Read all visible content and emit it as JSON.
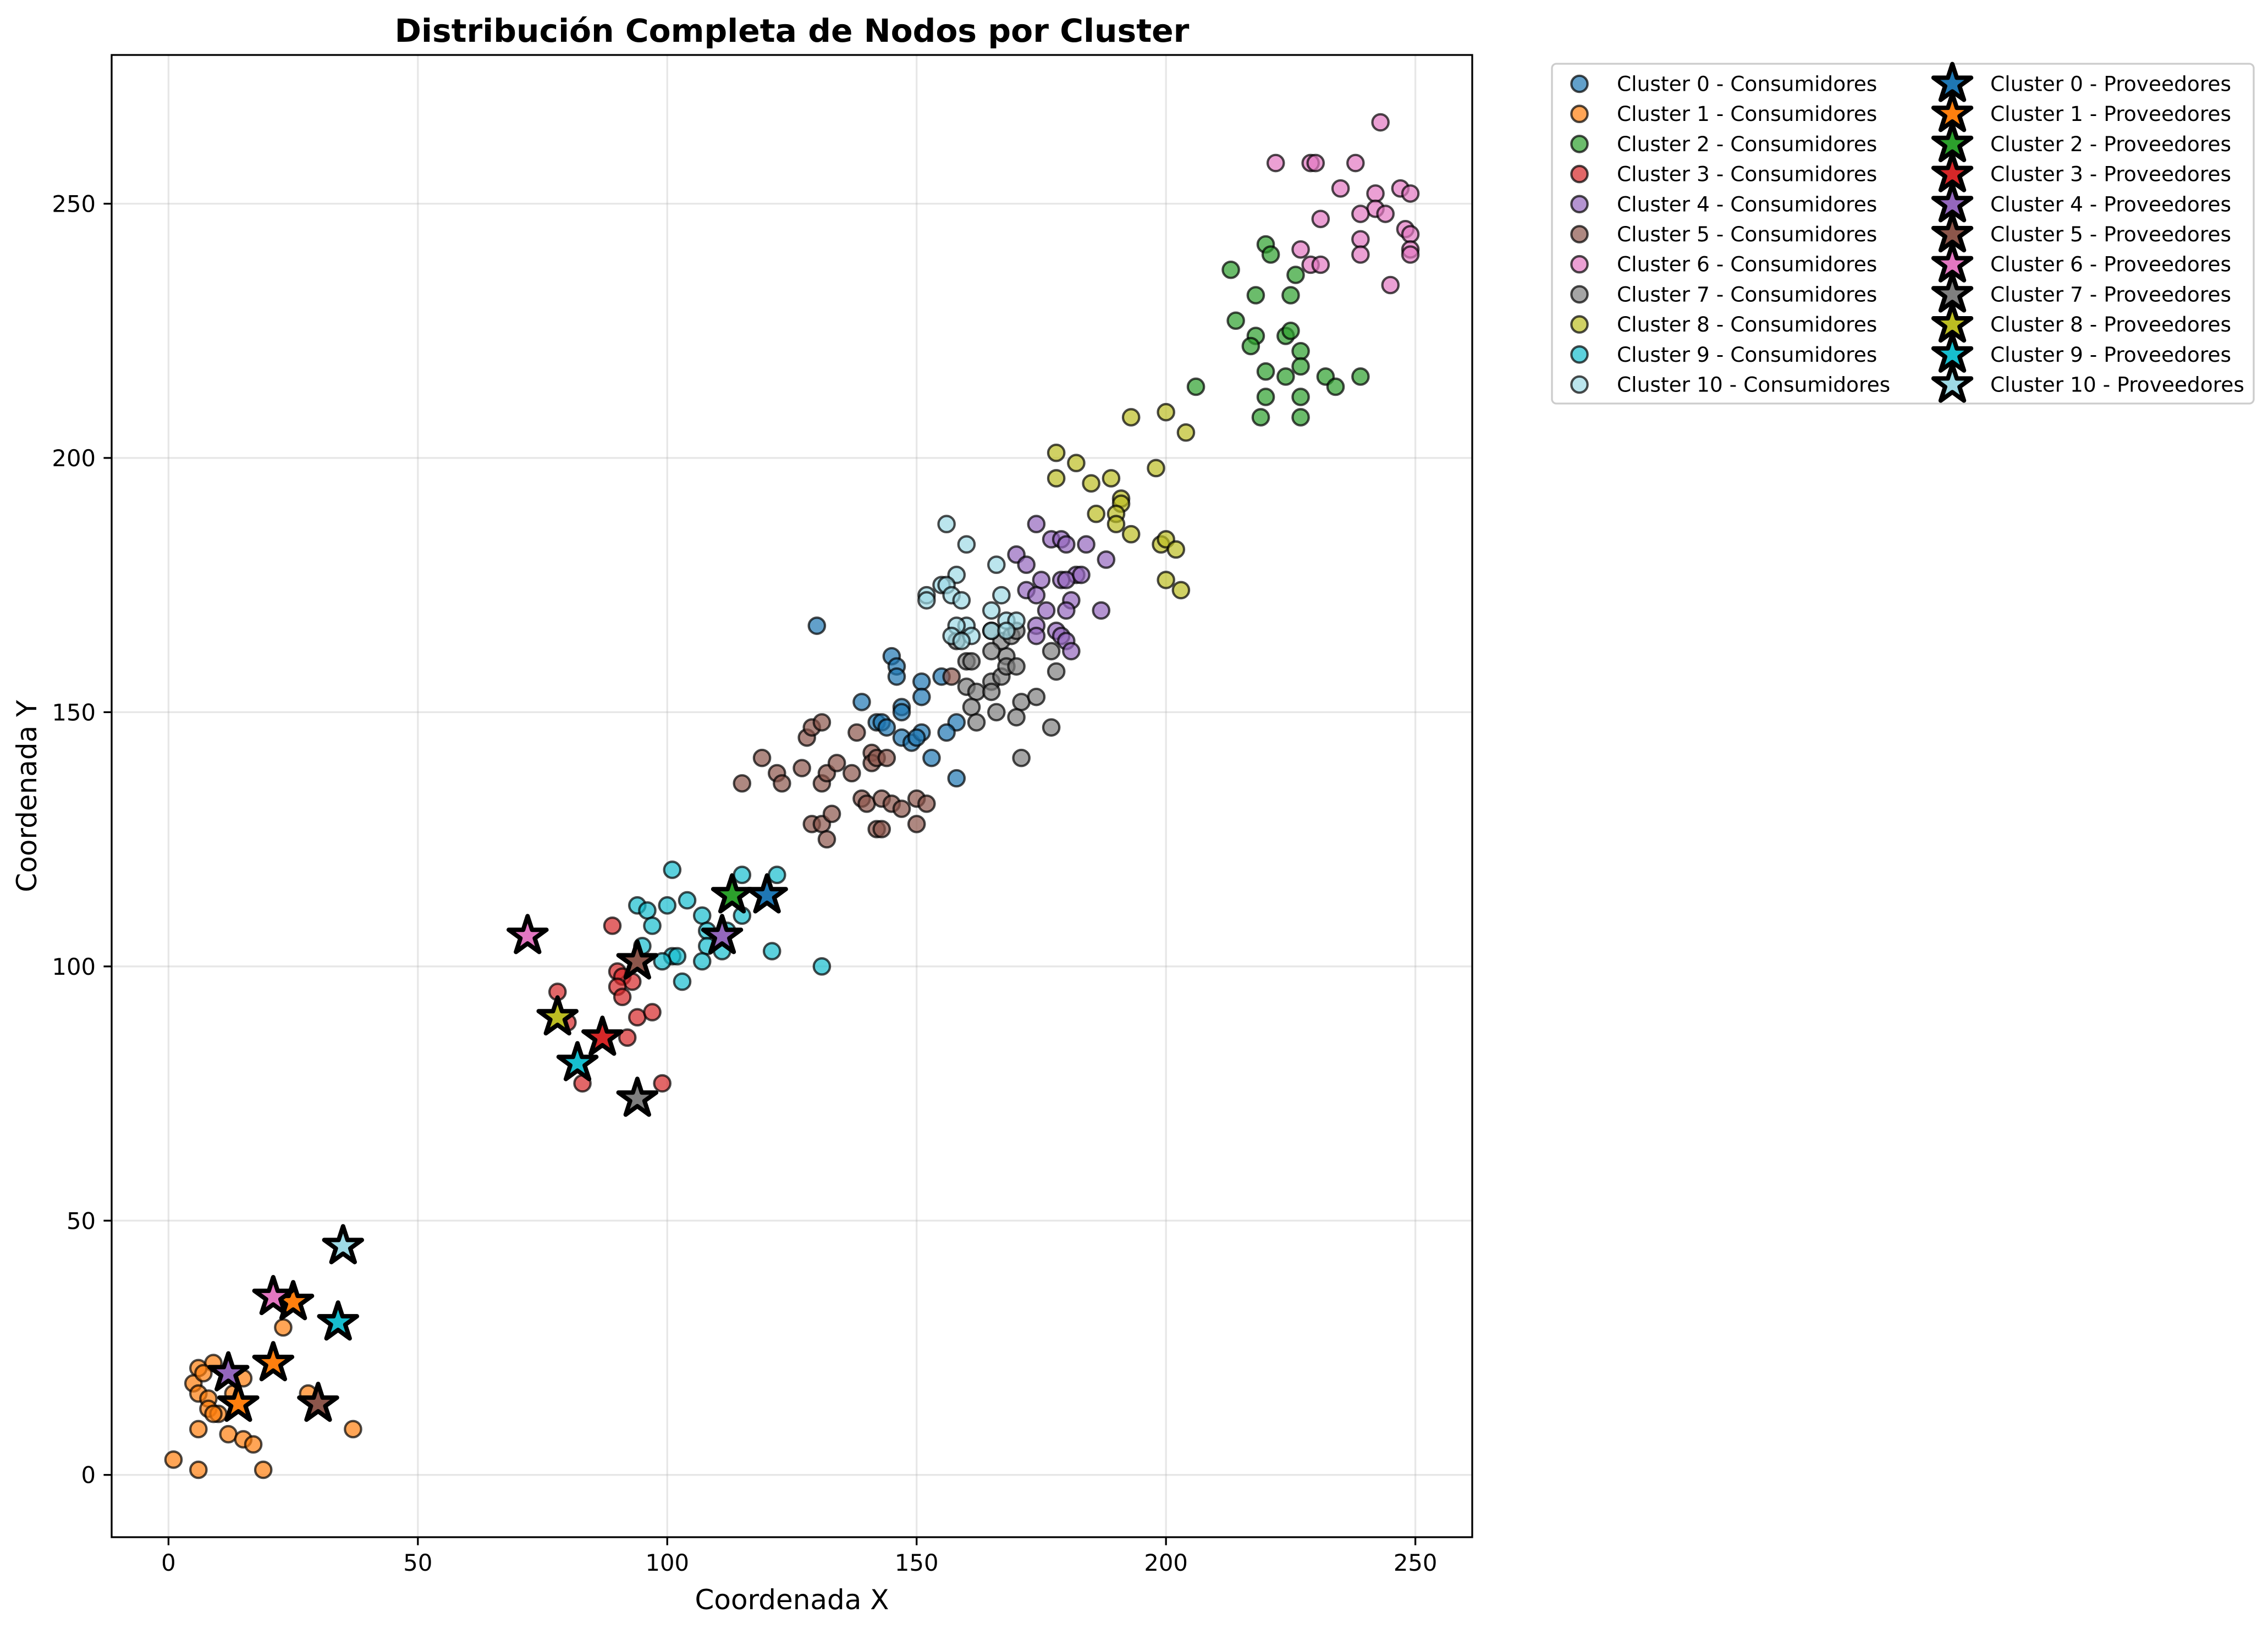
{
  "chart_data": {
    "type": "scatter",
    "title": "Distribución Completa de Nodos por Cluster",
    "xlabel": "Coordenada X",
    "ylabel": "Coordenada Y",
    "xlim": [
      -11.4,
      261.4
    ],
    "ylim": [
      -12.25,
      279.25
    ],
    "xticks": [
      0,
      50,
      100,
      150,
      200,
      250
    ],
    "yticks": [
      0,
      50,
      100,
      150,
      200,
      250
    ],
    "grid": true,
    "legend_position": "outside upper right",
    "series": [
      {
        "name": "Cluster 0 - Consumidores",
        "color": "#1f77b4",
        "marker": "circle",
        "points": [
          [
            130,
            167
          ],
          [
            139,
            152
          ],
          [
            145,
            161
          ],
          [
            146,
            159
          ],
          [
            146,
            157
          ],
          [
            142,
            148
          ],
          [
            143,
            148
          ],
          [
            144,
            147
          ],
          [
            147,
            151
          ],
          [
            147,
            150
          ],
          [
            151,
            156
          ],
          [
            151,
            153
          ],
          [
            147,
            145
          ],
          [
            149,
            144
          ],
          [
            151,
            146
          ],
          [
            153,
            141
          ],
          [
            155,
            157
          ],
          [
            158,
            148
          ],
          [
            156,
            146
          ],
          [
            158,
            137
          ],
          [
            150,
            145
          ]
        ]
      },
      {
        "name": "Cluster 1 - Consumidores",
        "color": "#ff7f0e",
        "marker": "circle",
        "points": [
          [
            1,
            3
          ],
          [
            6,
            1
          ],
          [
            19,
            1
          ],
          [
            37,
            9
          ],
          [
            28,
            16
          ],
          [
            23,
            29
          ],
          [
            6,
            21
          ],
          [
            5,
            18
          ],
          [
            9,
            22
          ],
          [
            6,
            16
          ],
          [
            7,
            20
          ],
          [
            8,
            15
          ],
          [
            8,
            13
          ],
          [
            10,
            12
          ],
          [
            9,
            12
          ],
          [
            6,
            9
          ],
          [
            12,
            8
          ],
          [
            15,
            7
          ],
          [
            17,
            6
          ],
          [
            15,
            19
          ],
          [
            13,
            16
          ]
        ]
      },
      {
        "name": "Cluster 2 - Consumidores",
        "color": "#2ca02c",
        "marker": "circle",
        "points": [
          [
            220,
            242
          ],
          [
            221,
            240
          ],
          [
            213,
            237
          ],
          [
            226,
            236
          ],
          [
            218,
            232
          ],
          [
            225,
            232
          ],
          [
            214,
            227
          ],
          [
            218,
            224
          ],
          [
            217,
            222
          ],
          [
            224,
            224
          ],
          [
            225,
            225
          ],
          [
            227,
            221
          ],
          [
            227,
            218
          ],
          [
            220,
            217
          ],
          [
            224,
            216
          ],
          [
            232,
            216
          ],
          [
            239,
            216
          ],
          [
            234,
            214
          ],
          [
            206,
            214
          ],
          [
            220,
            212
          ],
          [
            227,
            212
          ],
          [
            219,
            208
          ],
          [
            227,
            208
          ]
        ]
      },
      {
        "name": "Cluster 3 - Consumidores",
        "color": "#d62728",
        "marker": "circle",
        "points": [
          [
            89,
            108
          ],
          [
            78,
            95
          ],
          [
            90,
            99
          ],
          [
            91,
            98
          ],
          [
            93,
            97
          ],
          [
            90,
            96
          ],
          [
            91,
            94
          ],
          [
            94,
            90
          ],
          [
            97,
            91
          ],
          [
            92,
            86
          ],
          [
            99,
            77
          ],
          [
            83,
            77
          ],
          [
            80,
            89
          ]
        ]
      },
      {
        "name": "Cluster 4 - Consumidores",
        "color": "#9467bd",
        "marker": "circle",
        "points": [
          [
            174,
            187
          ],
          [
            170,
            181
          ],
          [
            177,
            184
          ],
          [
            179,
            184
          ],
          [
            180,
            183
          ],
          [
            184,
            183
          ],
          [
            172,
            179
          ],
          [
            188,
            180
          ],
          [
            175,
            176
          ],
          [
            182,
            177
          ],
          [
            179,
            176
          ],
          [
            180,
            176
          ],
          [
            172,
            174
          ],
          [
            174,
            173
          ],
          [
            181,
            172
          ],
          [
            176,
            170
          ],
          [
            180,
            170
          ],
          [
            187,
            170
          ],
          [
            174,
            167
          ],
          [
            178,
            166
          ],
          [
            179,
            165
          ],
          [
            174,
            165
          ],
          [
            180,
            164
          ],
          [
            181,
            162
          ],
          [
            183,
            177
          ]
        ]
      },
      {
        "name": "Cluster 5 - Consumidores",
        "color": "#8c564b",
        "marker": "circle",
        "points": [
          [
            119,
            141
          ],
          [
            115,
            136
          ],
          [
            122,
            138
          ],
          [
            123,
            136
          ],
          [
            128,
            145
          ],
          [
            127,
            139
          ],
          [
            129,
            147
          ],
          [
            131,
            148
          ],
          [
            131,
            136
          ],
          [
            132,
            138
          ],
          [
            134,
            140
          ],
          [
            137,
            138
          ],
          [
            138,
            146
          ],
          [
            129,
            128
          ],
          [
            131,
            128
          ],
          [
            132,
            125
          ],
          [
            133,
            130
          ],
          [
            139,
            133
          ],
          [
            140,
            132
          ],
          [
            141,
            142
          ],
          [
            141,
            140
          ],
          [
            142,
            141
          ],
          [
            144,
            141
          ],
          [
            142,
            127
          ],
          [
            143,
            127
          ],
          [
            143,
            133
          ],
          [
            145,
            132
          ],
          [
            147,
            131
          ],
          [
            150,
            133
          ],
          [
            152,
            132
          ],
          [
            150,
            128
          ],
          [
            157,
            157
          ]
        ]
      },
      {
        "name": "Cluster 6 - Consumidores",
        "color": "#e377c2",
        "marker": "circle",
        "points": [
          [
            243,
            266
          ],
          [
            222,
            258
          ],
          [
            229,
            258
          ],
          [
            230,
            258
          ],
          [
            238,
            258
          ],
          [
            235,
            253
          ],
          [
            247,
            253
          ],
          [
            249,
            252
          ],
          [
            242,
            252
          ],
          [
            242,
            249
          ],
          [
            244,
            248
          ],
          [
            239,
            248
          ],
          [
            231,
            247
          ],
          [
            248,
            245
          ],
          [
            249,
            244
          ],
          [
            239,
            243
          ],
          [
            227,
            241
          ],
          [
            249,
            241
          ],
          [
            249,
            240
          ],
          [
            239,
            240
          ],
          [
            229,
            238
          ],
          [
            231,
            238
          ],
          [
            245,
            234
          ]
        ]
      },
      {
        "name": "Cluster 7 - Consumidores",
        "color": "#7f7f7f",
        "marker": "circle",
        "points": [
          [
            158,
            164
          ],
          [
            160,
            160
          ],
          [
            161,
            160
          ],
          [
            160,
            155
          ],
          [
            162,
            154
          ],
          [
            161,
            151
          ],
          [
            162,
            148
          ],
          [
            165,
            156
          ],
          [
            165,
            154
          ],
          [
            166,
            150
          ],
          [
            167,
            157
          ],
          [
            168,
            161
          ],
          [
            168,
            159
          ],
          [
            170,
            159
          ],
          [
            167,
            164
          ],
          [
            169,
            165
          ],
          [
            170,
            166
          ],
          [
            171,
            152
          ],
          [
            170,
            149
          ],
          [
            174,
            153
          ],
          [
            171,
            141
          ],
          [
            177,
            147
          ],
          [
            178,
            158
          ],
          [
            177,
            162
          ],
          [
            165,
            166
          ],
          [
            165,
            162
          ]
        ]
      },
      {
        "name": "Cluster 8 - Consumidores",
        "color": "#bcbd22",
        "marker": "circle",
        "points": [
          [
            193,
            208
          ],
          [
            200,
            209
          ],
          [
            204,
            205
          ],
          [
            178,
            201
          ],
          [
            182,
            199
          ],
          [
            185,
            195
          ],
          [
            189,
            196
          ],
          [
            198,
            198
          ],
          [
            178,
            196
          ],
          [
            191,
            192
          ],
          [
            191,
            191
          ],
          [
            186,
            189
          ],
          [
            190,
            189
          ],
          [
            190,
            187
          ],
          [
            193,
            185
          ],
          [
            199,
            183
          ],
          [
            200,
            184
          ],
          [
            202,
            182
          ],
          [
            200,
            176
          ],
          [
            203,
            174
          ]
        ]
      },
      {
        "name": "Cluster 9 - Consumidores",
        "color": "#17becf",
        "marker": "circle",
        "points": [
          [
            101,
            119
          ],
          [
            115,
            118
          ],
          [
            122,
            118
          ],
          [
            94,
            112
          ],
          [
            100,
            112
          ],
          [
            96,
            111
          ],
          [
            104,
            113
          ],
          [
            97,
            108
          ],
          [
            107,
            110
          ],
          [
            115,
            110
          ],
          [
            108,
            107
          ],
          [
            112,
            107
          ],
          [
            95,
            104
          ],
          [
            101,
            102
          ],
          [
            102,
            102
          ],
          [
            99,
            101
          ],
          [
            108,
            104
          ],
          [
            111,
            103
          ],
          [
            107,
            101
          ],
          [
            121,
            103
          ],
          [
            131,
            100
          ],
          [
            103,
            97
          ]
        ]
      },
      {
        "name": "Cluster 10 - Consumidores",
        "color": "#9edae5",
        "marker": "circle",
        "points": [
          [
            156,
            187
          ],
          [
            160,
            183
          ],
          [
            166,
            179
          ],
          [
            158,
            177
          ],
          [
            155,
            175
          ],
          [
            156,
            175
          ],
          [
            157,
            173
          ],
          [
            152,
            173
          ],
          [
            152,
            172
          ],
          [
            159,
            172
          ],
          [
            167,
            173
          ],
          [
            165,
            170
          ],
          [
            168,
            168
          ],
          [
            170,
            168
          ],
          [
            160,
            167
          ],
          [
            158,
            167
          ],
          [
            161,
            165
          ],
          [
            157,
            165
          ],
          [
            159,
            164
          ],
          [
            165,
            166
          ],
          [
            168,
            166
          ]
        ]
      },
      {
        "name": "Cluster 0 - Proveedores",
        "color": "#1f77b4",
        "marker": "star",
        "points": [
          [
            120,
            114
          ]
        ]
      },
      {
        "name": "Cluster 1 - Proveedores",
        "color": "#ff7f0e",
        "marker": "star",
        "points": [
          [
            25,
            34
          ],
          [
            21,
            22
          ],
          [
            14,
            14
          ]
        ]
      },
      {
        "name": "Cluster 2 - Proveedores",
        "color": "#2ca02c",
        "marker": "star",
        "points": [
          [
            113,
            114
          ]
        ]
      },
      {
        "name": "Cluster 3 - Proveedores",
        "color": "#d62728",
        "marker": "star",
        "points": [
          [
            87,
            86
          ]
        ]
      },
      {
        "name": "Cluster 4 - Proveedores",
        "color": "#9467bd",
        "marker": "star",
        "points": [
          [
            111,
            106
          ],
          [
            12,
            20
          ]
        ]
      },
      {
        "name": "Cluster 5 - Proveedores",
        "color": "#8c564b",
        "marker": "star",
        "points": [
          [
            94,
            101
          ],
          [
            30,
            14
          ]
        ]
      },
      {
        "name": "Cluster 6 - Proveedores",
        "color": "#e377c2",
        "marker": "star",
        "points": [
          [
            72,
            106
          ],
          [
            21,
            35
          ]
        ]
      },
      {
        "name": "Cluster 7 - Proveedores",
        "color": "#7f7f7f",
        "marker": "star",
        "points": [
          [
            94,
            74
          ]
        ]
      },
      {
        "name": "Cluster 8 - Proveedores",
        "color": "#bcbd22",
        "marker": "star",
        "points": [
          [
            78,
            90
          ]
        ]
      },
      {
        "name": "Cluster 9 - Proveedores",
        "color": "#17becf",
        "marker": "star",
        "points": [
          [
            82,
            81
          ],
          [
            34,
            30
          ]
        ]
      },
      {
        "name": "Cluster 10 - Proveedores",
        "color": "#9edae5",
        "marker": "star",
        "points": [
          [
            35,
            45
          ]
        ]
      }
    ]
  }
}
